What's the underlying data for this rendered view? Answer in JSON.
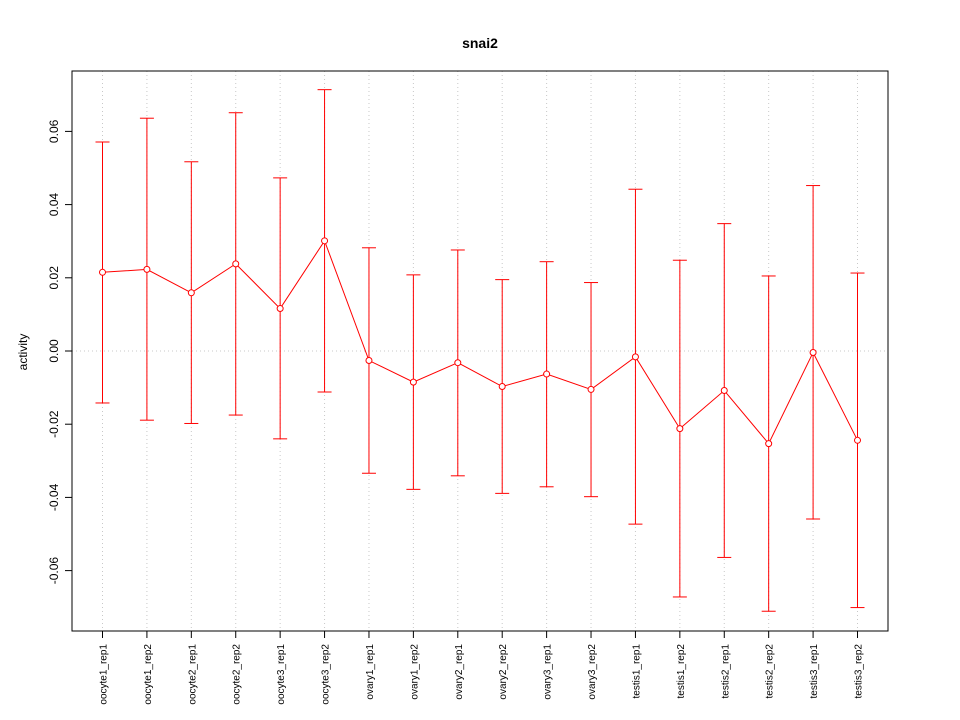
{
  "chart_data": {
    "type": "line",
    "title": "snai2",
    "xlabel": "",
    "ylabel": "activity",
    "ylim": [
      -0.0765,
      0.0765
    ],
    "yticks": [
      -0.06,
      -0.04,
      -0.02,
      0.0,
      0.02,
      0.04,
      0.06
    ],
    "ytick_labels": [
      "-0.06",
      "-0.04",
      "-0.02",
      "0.00",
      "0.02",
      "0.04",
      "0.06"
    ],
    "grid": true,
    "categories": [
      "oocyte1_rep1",
      "oocyte1_rep2",
      "oocyte2_rep1",
      "oocyte2_rep2",
      "oocyte3_rep1",
      "oocyte3_rep2",
      "ovary1_rep1",
      "ovary1_rep2",
      "ovary2_rep1",
      "ovary2_rep2",
      "ovary3_rep1",
      "ovary3_rep2",
      "testis1_rep1",
      "testis1_rep2",
      "testis2_rep1",
      "testis2_rep2",
      "testis3_rep1",
      "testis3_rep2"
    ],
    "series": [
      {
        "values": [
          0.0215,
          0.0223,
          0.0159,
          0.0238,
          0.0116,
          0.0301,
          -0.0026,
          -0.0085,
          -0.0032,
          -0.0097,
          -0.0063,
          -0.0105,
          -0.0016,
          -0.0212,
          -0.0108,
          -0.0253,
          -0.0004,
          -0.0244
        ],
        "upper": [
          0.0571,
          0.0636,
          0.0517,
          0.0651,
          0.0473,
          0.0714,
          0.0282,
          0.0208,
          0.0276,
          0.0195,
          0.0244,
          0.0187,
          0.0442,
          0.0248,
          0.0348,
          0.0205,
          0.0452,
          0.0213
        ],
        "lower": [
          -0.0142,
          -0.0189,
          -0.0198,
          -0.0175,
          -0.024,
          -0.0112,
          -0.0334,
          -0.0378,
          -0.0341,
          -0.0389,
          -0.0371,
          -0.0398,
          -0.0473,
          -0.0672,
          -0.0564,
          -0.0711,
          -0.0459,
          -0.0701
        ]
      }
    ],
    "colors": {
      "series": "#ff0000",
      "grid": "#c8c8c8",
      "axis": "#000000"
    }
  }
}
